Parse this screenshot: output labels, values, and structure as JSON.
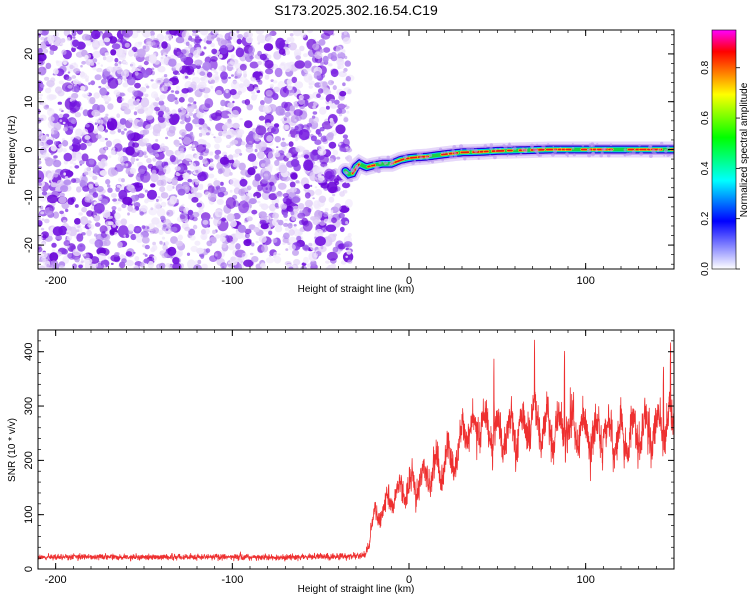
{
  "figure": {
    "title": "S173.2025.302.16.54.C19"
  },
  "colors": {
    "heat_low": "#d9ccf2",
    "heat_mid": "#7a1fe0",
    "snr_line": "#ee3030",
    "band_core": "#e81818",
    "band_edge": "#20d040"
  },
  "chart_data": [
    {
      "type": "heatmap",
      "name": "spectrogram",
      "xlabel": "Height of straight line (km)",
      "ylabel": "Frequency (Hz)",
      "xlim": [
        -210,
        150
      ],
      "ylim": [
        -25,
        25
      ],
      "x_ticks": [
        -200,
        -100,
        0,
        100
      ],
      "x_tick_labels": [
        "-200",
        "-100",
        "0",
        "100"
      ],
      "y_ticks": [
        20,
        10,
        0,
        -10,
        -20
      ],
      "y_tick_labels": [
        "20",
        "10",
        "0",
        "-10",
        "-20"
      ],
      "noise_region_x": [
        -210,
        -35
      ],
      "signal_track": {
        "x": [
          -36,
          -34,
          -32,
          -30,
          -28,
          -26,
          -24,
          -22,
          -20,
          -15,
          -10,
          -5,
          0,
          5,
          10,
          20,
          30,
          40,
          50,
          60,
          70,
          80,
          90,
          100,
          110,
          120,
          130,
          140,
          150
        ],
        "freq": [
          -4.5,
          -5.2,
          -5.0,
          -3.6,
          -3.0,
          -3.4,
          -3.7,
          -3.5,
          -3.3,
          -3.0,
          -3.0,
          -2.2,
          -1.8,
          -1.6,
          -1.5,
          -1.0,
          -0.6,
          -0.5,
          -0.3,
          -0.2,
          -0.1,
          0.0,
          0.0,
          0.0,
          0.0,
          0.0,
          0.0,
          0.0,
          0.0
        ]
      }
    },
    {
      "type": "colorbar",
      "name": "amplitude-colorbar",
      "label": "Normalized spectral amplitude",
      "range": [
        0.0,
        0.95
      ],
      "ticks": [
        0.0,
        0.2,
        0.4,
        0.6,
        0.8
      ],
      "tick_labels": [
        "0.0",
        "0.2",
        "0.4",
        "0.6",
        "0.8"
      ],
      "colors": [
        "#ff00ff",
        "#ff0000",
        "#ffff00",
        "#00ff00",
        "#00ffff",
        "#0000ff",
        "#ffffff"
      ]
    },
    {
      "type": "line",
      "name": "snr",
      "xlabel": "Height of straight line (km)",
      "ylabel": "SNR (10 * v/v)",
      "xlim": [
        -210,
        150
      ],
      "ylim": [
        0,
        440
      ],
      "x_ticks": [
        -200,
        -100,
        0,
        100
      ],
      "x_tick_labels": [
        "-200",
        "-100",
        "0",
        "100"
      ],
      "y_ticks": [
        0,
        100,
        200,
        300,
        400
      ],
      "y_tick_labels": [
        "0",
        "100",
        "200",
        "300",
        "400"
      ],
      "trend": {
        "x": [
          -210,
          -150,
          -100,
          -50,
          -25,
          -20,
          -10,
          0,
          10,
          20,
          28,
          30,
          40,
          50,
          60,
          70,
          80,
          90,
          100,
          110,
          120,
          130,
          140,
          150
        ],
        "y": [
          22,
          22,
          22,
          22,
          25,
          90,
          130,
          155,
          175,
          195,
          210,
          250,
          265,
          250,
          255,
          270,
          255,
          265,
          250,
          255,
          245,
          250,
          255,
          260
        ]
      },
      "spread": {
        "x": [
          -210,
          -25,
          -20,
          0,
          30,
          60,
          100,
          150
        ],
        "y": [
          12,
          14,
          40,
          60,
          80,
          90,
          90,
          90
        ]
      },
      "peaks": [
        {
          "x": 48,
          "y": 400
        },
        {
          "x": 71,
          "y": 432
        },
        {
          "x": 88,
          "y": 405
        },
        {
          "x": 148,
          "y": 420
        },
        {
          "x": 144,
          "y": 375
        }
      ],
      "points": 3600
    }
  ]
}
